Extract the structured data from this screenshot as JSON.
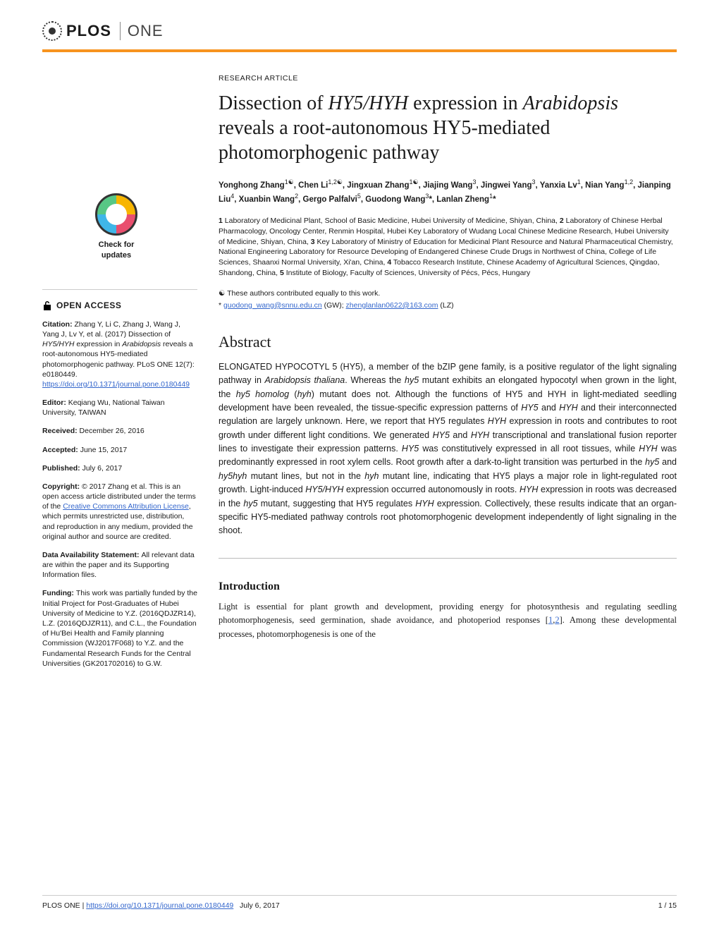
{
  "journal": {
    "name_part1": "PLOS",
    "name_part2": "ONE"
  },
  "article_type": "RESEARCH ARTICLE",
  "title_parts": {
    "p1": "Dissection of ",
    "i1": "HY5/HYH",
    "p2": " expression in ",
    "i2": "Arabidopsis",
    "p3": " reveals a root-autonomous HY5-mediated photomorphogenic pathway"
  },
  "check_updates": "Check for updates",
  "authors_html": "Yonghong Zhang<sup>1☯</sup>, Chen Li<sup>1,2☯</sup>, Jingxuan Zhang<sup>1☯</sup>, Jiajing Wang<sup>3</sup>, Jingwei Yang<sup>3</sup>, Yanxia Lv<sup>1</sup>, Nian Yang<sup>1,2</sup>, Jianping Liu<sup>4</sup>, Xuanbin Wang<sup>2</sup>, Gergo Palfalvi<sup>5</sup>, Guodong Wang<sup>3</sup>*, Lanlan Zheng<sup>1</sup>*",
  "affiliations": [
    {
      "n": "1",
      "text": " Laboratory of Medicinal Plant, School of Basic Medicine, Hubei University of Medicine, Shiyan, China, "
    },
    {
      "n": "2",
      "text": " Laboratory of Chinese Herbal Pharmacology, Oncology Center, Renmin Hospital, Hubei Key Laboratory of Wudang Local Chinese Medicine Research, Hubei University of Medicine, Shiyan, China, "
    },
    {
      "n": "3",
      "text": " Key Laboratory of Ministry of Education for Medicinal Plant Resource and Natural Pharmaceutical Chemistry, National Engineering Laboratory for Resource Developing of Endangered Chinese Crude Drugs in Northwest of China, College of Life Sciences, Shaanxi Normal University, Xi'an, China, "
    },
    {
      "n": "4",
      "text": " Tobacco Research Institute, Chinese Academy of Agricultural Sciences, Qingdao, Shandong, China, "
    },
    {
      "n": "5",
      "text": " Institute of Biology, Faculty of Sciences, University of Pécs, Pécs, Hungary"
    }
  ],
  "equal_contrib": "☯ These authors contributed equally to this work.",
  "corresp": {
    "prefix": "* ",
    "email1": "guodong_wang@snnu.edu.cn",
    "suffix1": " (GW); ",
    "email2": "zhenglanlan0622@163.com",
    "suffix2": " (LZ)"
  },
  "open_access": "OPEN ACCESS",
  "sidebar": {
    "citation": {
      "label": "Citation: ",
      "text1": "Zhang Y, Li C, Zhang J, Wang J, Yang J, Lv Y, et al. (2017) Dissection of ",
      "i1": "HY5/HYH",
      "text2": " expression in ",
      "i2": "Arabidopsis",
      "text3": " reveals a root-autonomous HY5-mediated photomorphogenic pathway. PLoS ONE 12(7): e0180449. ",
      "doi": "https://doi.org/10.1371/journal.pone.0180449"
    },
    "editor": {
      "label": "Editor: ",
      "text": "Keqiang Wu, National Taiwan University, TAIWAN"
    },
    "received": {
      "label": "Received: ",
      "text": "December 26, 2016"
    },
    "accepted": {
      "label": "Accepted: ",
      "text": "June 15, 2017"
    },
    "published": {
      "label": "Published: ",
      "text": "July 6, 2017"
    },
    "copyright": {
      "label": "Copyright: ",
      "text1": "© 2017 Zhang et al. This is an open access article distributed under the terms of the ",
      "link": "Creative Commons Attribution License",
      "text2": ", which permits unrestricted use, distribution, and reproduction in any medium, provided the original author and source are credited."
    },
    "data": {
      "label": "Data Availability Statement: ",
      "text": "All relevant data are within the paper and its Supporting Information files."
    },
    "funding": {
      "label": "Funding: ",
      "text": "This work was partially funded by the Initial Project for Post-Graduates of Hubei University of Medicine to Y.Z. (2016QDJZR14), L.Z. (2016QDJZR11), and C.L., the Foundation of Hu'Bei Health and Family planning Commission (WJ2017F068) to Y.Z. and the Fundamental Research Funds for the Central Universities (GK201702016) to G.W."
    }
  },
  "abstract": {
    "heading": "Abstract",
    "body_parts": [
      {
        "t": "text",
        "v": "ELONGATED HYPOCOTYL 5 (HY5), a member of the bZIP gene family, is a positive regulator of the light signaling pathway in "
      },
      {
        "t": "i",
        "v": "Arabidopsis thaliana"
      },
      {
        "t": "text",
        "v": ". Whereas the "
      },
      {
        "t": "i",
        "v": "hy5"
      },
      {
        "t": "text",
        "v": " mutant exhibits an elongated hypocotyl when grown in the light, the "
      },
      {
        "t": "i",
        "v": "hy5 homolog"
      },
      {
        "t": "text",
        "v": " ("
      },
      {
        "t": "i",
        "v": "hyh"
      },
      {
        "t": "text",
        "v": ") mutant does not. Although the functions of HY5 and HYH in light-mediated seedling development have been revealed, the tissue-specific expression patterns of "
      },
      {
        "t": "i",
        "v": "HY5"
      },
      {
        "t": "text",
        "v": " and "
      },
      {
        "t": "i",
        "v": "HYH"
      },
      {
        "t": "text",
        "v": " and their interconnected regulation are largely unknown. Here, we report that HY5 regulates "
      },
      {
        "t": "i",
        "v": "HYH"
      },
      {
        "t": "text",
        "v": " expression in roots and contributes to root growth under different light conditions. We generated "
      },
      {
        "t": "i",
        "v": "HY5"
      },
      {
        "t": "text",
        "v": " and "
      },
      {
        "t": "i",
        "v": "HYH"
      },
      {
        "t": "text",
        "v": " transcriptional and translational fusion reporter lines to investigate their expression patterns. "
      },
      {
        "t": "i",
        "v": "HY5"
      },
      {
        "t": "text",
        "v": " was constitutively expressed in all root tissues, while "
      },
      {
        "t": "i",
        "v": "HYH"
      },
      {
        "t": "text",
        "v": " was predominantly expressed in root xylem cells. Root growth after a dark-to-light transition was perturbed in the "
      },
      {
        "t": "i",
        "v": "hy5"
      },
      {
        "t": "text",
        "v": " and "
      },
      {
        "t": "i",
        "v": "hy5hyh"
      },
      {
        "t": "text",
        "v": " mutant lines, but not in the "
      },
      {
        "t": "i",
        "v": "hyh"
      },
      {
        "t": "text",
        "v": " mutant line, indicating that HY5 plays a major role in light-regulated root growth. Light-induced "
      },
      {
        "t": "i",
        "v": "HY5/HYH"
      },
      {
        "t": "text",
        "v": " expression occurred autonomously in roots. "
      },
      {
        "t": "i",
        "v": "HYH"
      },
      {
        "t": "text",
        "v": " expression in roots was decreased in the "
      },
      {
        "t": "i",
        "v": "hy5"
      },
      {
        "t": "text",
        "v": " mutant, suggesting that HY5 regulates "
      },
      {
        "t": "i",
        "v": "HYH"
      },
      {
        "t": "text",
        "v": " expression. Collectively, these results indicate that an organ-specific HY5-mediated pathway controls root photomorphogenic development independently of light signaling in the shoot."
      }
    ]
  },
  "introduction": {
    "heading": "Introduction",
    "body_parts": [
      {
        "t": "text",
        "v": "Light is essential for plant growth and development, providing energy for photosynthesis and regulating seedling photomorphogenesis, seed germination, shade avoidance, and photoperiod responses ["
      },
      {
        "t": "ref",
        "v": "1"
      },
      {
        "t": "text",
        "v": ","
      },
      {
        "t": "ref",
        "v": "2"
      },
      {
        "t": "text",
        "v": "]. Among these developmental processes, photomorphogenesis is one of the"
      }
    ]
  },
  "footer": {
    "left_prefix": "PLOS ONE | ",
    "doi": "https://doi.org/10.1371/journal.pone.0180449",
    "date": "July 6, 2017",
    "pages": "1 / 15"
  },
  "colors": {
    "accent": "#f7931e",
    "link": "#3366cc",
    "divider": "#cccccc"
  }
}
